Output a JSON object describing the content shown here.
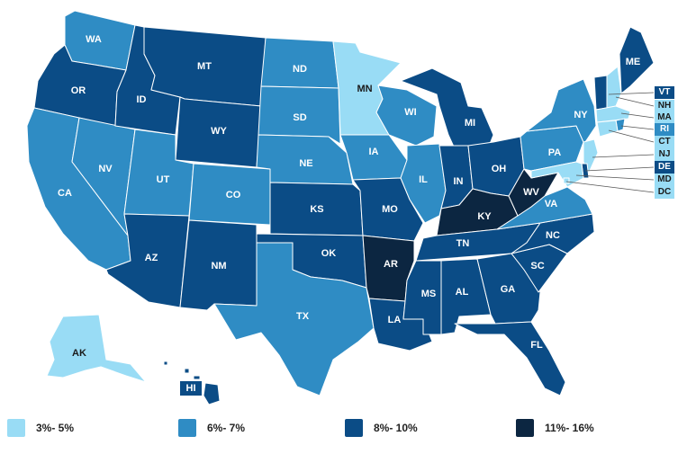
{
  "colors": {
    "tier1": "#99dcf5",
    "tier2": "#2f8cc4",
    "tier3": "#0b4c86",
    "tier4": "#0c2641",
    "background": "#ffffff"
  },
  "legend": [
    {
      "label": "3%- 5%",
      "tier": "tier1"
    },
    {
      "label": "6%- 7%",
      "tier": "tier2"
    },
    {
      "label": "8%- 10%",
      "tier": "tier3"
    },
    {
      "label": "11%- 16%",
      "tier": "tier4"
    }
  ],
  "states": {
    "WA": {
      "label": "WA",
      "tier": "tier2"
    },
    "OR": {
      "label": "OR",
      "tier": "tier3"
    },
    "CA": {
      "label": "CA",
      "tier": "tier2"
    },
    "NV": {
      "label": "NV",
      "tier": "tier2"
    },
    "ID": {
      "label": "ID",
      "tier": "tier3"
    },
    "MT": {
      "label": "MT",
      "tier": "tier3"
    },
    "WY": {
      "label": "WY",
      "tier": "tier3"
    },
    "UT": {
      "label": "UT",
      "tier": "tier2"
    },
    "AZ": {
      "label": "AZ",
      "tier": "tier3"
    },
    "CO": {
      "label": "CO",
      "tier": "tier2"
    },
    "NM": {
      "label": "NM",
      "tier": "tier3"
    },
    "ND": {
      "label": "ND",
      "tier": "tier2"
    },
    "SD": {
      "label": "SD",
      "tier": "tier2"
    },
    "NE": {
      "label": "NE",
      "tier": "tier2"
    },
    "KS": {
      "label": "KS",
      "tier": "tier3"
    },
    "OK": {
      "label": "OK",
      "tier": "tier3"
    },
    "TX": {
      "label": "TX",
      "tier": "tier2"
    },
    "MN": {
      "label": "MN",
      "tier": "tier1"
    },
    "IA": {
      "label": "IA",
      "tier": "tier2"
    },
    "MO": {
      "label": "MO",
      "tier": "tier3"
    },
    "AR": {
      "label": "AR",
      "tier": "tier4"
    },
    "LA": {
      "label": "LA",
      "tier": "tier3"
    },
    "WI": {
      "label": "WI",
      "tier": "tier2"
    },
    "IL": {
      "label": "IL",
      "tier": "tier2"
    },
    "MI": {
      "label": "MI",
      "tier": "tier3"
    },
    "IN": {
      "label": "IN",
      "tier": "tier3"
    },
    "OH": {
      "label": "OH",
      "tier": "tier3"
    },
    "KY": {
      "label": "KY",
      "tier": "tier4"
    },
    "TN": {
      "label": "TN",
      "tier": "tier3"
    },
    "MS": {
      "label": "MS",
      "tier": "tier3"
    },
    "AL": {
      "label": "AL",
      "tier": "tier3"
    },
    "GA": {
      "label": "GA",
      "tier": "tier3"
    },
    "FL": {
      "label": "FL",
      "tier": "tier3"
    },
    "SC": {
      "label": "SC",
      "tier": "tier3"
    },
    "NC": {
      "label": "NC",
      "tier": "tier3"
    },
    "VA": {
      "label": "VA",
      "tier": "tier2"
    },
    "WV": {
      "label": "WV",
      "tier": "tier4"
    },
    "PA": {
      "label": "PA",
      "tier": "tier2"
    },
    "NY": {
      "label": "NY",
      "tier": "tier2"
    },
    "ME": {
      "label": "ME",
      "tier": "tier3"
    },
    "VT": {
      "label": "VT",
      "tier": "tier3"
    },
    "NH": {
      "label": "NH",
      "tier": "tier1"
    },
    "MA": {
      "label": "MA",
      "tier": "tier1"
    },
    "RI": {
      "label": "RI",
      "tier": "tier2"
    },
    "CT": {
      "label": "CT",
      "tier": "tier1"
    },
    "NJ": {
      "label": "NJ",
      "tier": "tier1"
    },
    "DE": {
      "label": "DE",
      "tier": "tier3"
    },
    "MD": {
      "label": "MD",
      "tier": "tier1"
    },
    "DC": {
      "label": "DC",
      "tier": "tier1"
    },
    "AK": {
      "label": "AK",
      "tier": "tier1"
    },
    "HI": {
      "label": "HI",
      "tier": "tier3"
    }
  }
}
